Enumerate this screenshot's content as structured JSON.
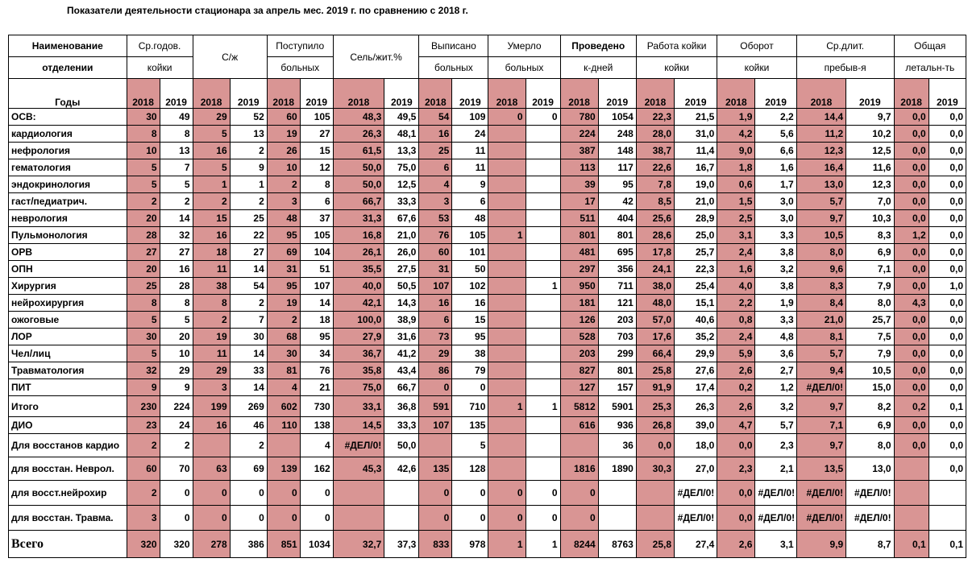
{
  "title": "Показатели деятельности стационара за апрель мес.  2019 г. по сравнению с 2018 г.",
  "header": {
    "row1": [
      "Наименование",
      "Ср.годов.",
      "С/ж",
      "Поступило",
      "Сель/жит.%",
      "Выписано",
      "Умерло",
      "Проведено",
      "Работа койки",
      "Оборот",
      "Ср.длит.",
      "Общая"
    ],
    "row2": [
      "отделении",
      "койки",
      "",
      "больных",
      "",
      "больных",
      "больных",
      "к-дней",
      "койки",
      "койки",
      "пребыв-я",
      "летальн-ть"
    ],
    "years_label": "Годы",
    "y2018": "2018",
    "y2019": "2019"
  },
  "rows": [
    {
      "name": "ОСВ:",
      "v": [
        "30",
        "49",
        "29",
        "52",
        "60",
        "105",
        "48,3",
        "49,5",
        "54",
        "109",
        "0",
        "0",
        "780",
        "1054",
        "22,3",
        "21,5",
        "1,9",
        "2,2",
        "14,4",
        "9,7",
        "0,0",
        "0,0"
      ]
    },
    {
      "name": "кардиология",
      "v": [
        "8",
        "8",
        "5",
        "13",
        "19",
        "27",
        "26,3",
        "48,1",
        "16",
        "24",
        "",
        "",
        "224",
        "248",
        "28,0",
        "31,0",
        "4,2",
        "5,6",
        "11,2",
        "10,2",
        "0,0",
        "0,0"
      ]
    },
    {
      "name": "нефрология",
      "v": [
        "10",
        "13",
        "16",
        "2",
        "26",
        "15",
        "61,5",
        "13,3",
        "25",
        "11",
        "",
        "",
        "387",
        "148",
        "38,7",
        "11,4",
        "9,0",
        "6,6",
        "12,3",
        "12,5",
        "0,0",
        "0,0"
      ]
    },
    {
      "name": "гематология",
      "v": [
        "5",
        "7",
        "5",
        "9",
        "10",
        "12",
        "50,0",
        "75,0",
        "6",
        "11",
        "",
        "",
        "113",
        "117",
        "22,6",
        "16,7",
        "1,8",
        "1,6",
        "16,4",
        "11,6",
        "0,0",
        "0,0"
      ]
    },
    {
      "name": "эндокринология",
      "v": [
        "5",
        "5",
        "1",
        "1",
        "2",
        "8",
        "50,0",
        "12,5",
        "4",
        "9",
        "",
        "",
        "39",
        "95",
        "7,8",
        "19,0",
        "0,6",
        "1,7",
        "13,0",
        "12,3",
        "0,0",
        "0,0"
      ]
    },
    {
      "name": "гаст/педиатрич.",
      "v": [
        "2",
        "2",
        "2",
        "2",
        "3",
        "6",
        "66,7",
        "33,3",
        "3",
        "6",
        "",
        "",
        "17",
        "42",
        "8,5",
        "21,0",
        "1,5",
        "3,0",
        "5,7",
        "7,0",
        "0,0",
        "0,0"
      ]
    },
    {
      "name": "неврология",
      "v": [
        "20",
        "14",
        "15",
        "25",
        "48",
        "37",
        "31,3",
        "67,6",
        "53",
        "48",
        "",
        "",
        "511",
        "404",
        "25,6",
        "28,9",
        "2,5",
        "3,0",
        "9,7",
        "10,3",
        "0,0",
        "0,0"
      ]
    },
    {
      "name": "Пульмонология",
      "v": [
        "28",
        "32",
        "16",
        "22",
        "95",
        "105",
        "16,8",
        "21,0",
        "76",
        "105",
        "1",
        "",
        "801",
        "801",
        "28,6",
        "25,0",
        "3,1",
        "3,3",
        "10,5",
        "8,3",
        "1,2",
        "0,0"
      ]
    },
    {
      "name": "ОРВ",
      "v": [
        "27",
        "27",
        "18",
        "27",
        "69",
        "104",
        "26,1",
        "26,0",
        "60",
        "101",
        "",
        "",
        "481",
        "695",
        "17,8",
        "25,7",
        "2,4",
        "3,8",
        "8,0",
        "6,9",
        "0,0",
        "0,0"
      ]
    },
    {
      "name": "ОПН",
      "v": [
        "20",
        "16",
        "11",
        "14",
        "31",
        "51",
        "35,5",
        "27,5",
        "31",
        "50",
        "",
        "",
        "297",
        "356",
        "24,1",
        "22,3",
        "1,6",
        "3,2",
        "9,6",
        "7,1",
        "0,0",
        "0,0"
      ]
    },
    {
      "name": "Хирургия",
      "v": [
        "25",
        "28",
        "38",
        "54",
        "95",
        "107",
        "40,0",
        "50,5",
        "107",
        "102",
        "",
        "1",
        "950",
        "711",
        "38,0",
        "25,4",
        "4,0",
        "3,8",
        "8,3",
        "7,9",
        "0,0",
        "1,0"
      ]
    },
    {
      "name": "нейрохирургия",
      "v": [
        "8",
        "8",
        "8",
        "2",
        "19",
        "14",
        "42,1",
        "14,3",
        "16",
        "16",
        "",
        "",
        "181",
        "121",
        "48,0",
        "15,1",
        "2,2",
        "1,9",
        "8,4",
        "8,0",
        "4,3",
        "0,0"
      ]
    },
    {
      "name": "ожоговые",
      "v": [
        "5",
        "5",
        "2",
        "7",
        "2",
        "18",
        "100,0",
        "38,9",
        "6",
        "15",
        "",
        "",
        "126",
        "203",
        "57,0",
        "40,6",
        "0,8",
        "3,3",
        "21,0",
        "25,7",
        "0,0",
        "0,0"
      ]
    },
    {
      "name": "ЛОР",
      "v": [
        "30",
        "20",
        "19",
        "30",
        "68",
        "95",
        "27,9",
        "31,6",
        "73",
        "95",
        "",
        "",
        "528",
        "703",
        "17,6",
        "35,2",
        "2,4",
        "4,8",
        "8,1",
        "7,5",
        "0,0",
        "0,0"
      ]
    },
    {
      "name": "Чел/лиц",
      "v": [
        "5",
        "10",
        "11",
        "14",
        "30",
        "34",
        "36,7",
        "41,2",
        "29",
        "38",
        "",
        "",
        "203",
        "299",
        "66,4",
        "29,9",
        "5,9",
        "3,6",
        "5,7",
        "7,9",
        "0,0",
        "0,0"
      ]
    },
    {
      "name": "Травматология",
      "v": [
        "32",
        "29",
        "29",
        "33",
        "81",
        "76",
        "35,8",
        "43,4",
        "86",
        "79",
        "",
        "",
        "827",
        "801",
        "25,8",
        "27,6",
        "2,6",
        "2,7",
        "9,4",
        "10,5",
        "0,0",
        "0,0"
      ]
    },
    {
      "name": "ПИТ",
      "v": [
        "9",
        "9",
        "3",
        "14",
        "4",
        "21",
        "75,0",
        "66,7",
        "0",
        "0",
        "",
        "",
        "127",
        "157",
        "91,9",
        "17,4",
        "0,2",
        "1,2",
        "#ДЕЛ/0!",
        "15,0",
        "0,0",
        "0,0"
      ]
    },
    {
      "name": "Итого",
      "v": [
        "230",
        "224",
        "199",
        "269",
        "602",
        "730",
        "33,1",
        "36,8",
        "591",
        "710",
        "1",
        "1",
        "5812",
        "5901",
        "25,3",
        "26,3",
        "2,6",
        "3,2",
        "9,7",
        "8,2",
        "0,2",
        "0,1"
      ]
    },
    {
      "name": "ДИО",
      "v": [
        "23",
        "24",
        "16",
        "46",
        "110",
        "138",
        "14,5",
        "33,3",
        "107",
        "135",
        "",
        "",
        "616",
        "936",
        "26,8",
        "39,0",
        "4,7",
        "5,7",
        "7,1",
        "6,9",
        "0,0",
        "0,0"
      ]
    },
    {
      "name": "Для восстанов кардио",
      "v": [
        "2",
        "2",
        "",
        "2",
        "",
        "4",
        "#ДЕЛ/0!",
        "50,0",
        "",
        "5",
        "",
        "",
        "",
        "36",
        "0,0",
        "18,0",
        "0,0",
        "2,3",
        "9,7",
        "8,0",
        "0,0",
        "0,0"
      ]
    },
    {
      "name": "для восстан. Неврол.",
      "v": [
        "60",
        "70",
        "63",
        "69",
        "139",
        "162",
        "45,3",
        "42,6",
        "135",
        "128",
        "",
        "",
        "1816",
        "1890",
        "30,3",
        "27,0",
        "2,3",
        "2,1",
        "13,5",
        "13,0",
        "",
        "0,0"
      ]
    },
    {
      "name": "для восст.нейрохир",
      "v": [
        "2",
        "0",
        "0",
        "0",
        "0",
        "0",
        "",
        "",
        "0",
        "0",
        "0",
        "0",
        "0",
        "",
        "",
        "#ДЕЛ/0!",
        "0,0",
        "#ДЕЛ/0!",
        "#ДЕЛ/0!",
        "#ДЕЛ/0!",
        "",
        ""
      ]
    },
    {
      "name": "для восстан. Травма.",
      "v": [
        "3",
        "0",
        "0",
        "0",
        "0",
        "0",
        "",
        "",
        "0",
        "0",
        "0",
        "0",
        "0",
        "",
        "",
        "#ДЕЛ/0!",
        "0,0",
        "#ДЕЛ/0!",
        "#ДЕЛ/0!",
        "#ДЕЛ/0!",
        "",
        ""
      ]
    }
  ],
  "total": {
    "name": "Всего",
    "v": [
      "320",
      "320",
      "278",
      "386",
      "851",
      "1034",
      "32,7",
      "37,3",
      "833",
      "978",
      "1",
      "1",
      "8244",
      "8763",
      "25,8",
      "27,4",
      "2,6",
      "3,1",
      "9,9",
      "8,7",
      "0,1",
      "0,1"
    ]
  },
  "colors": {
    "pink": "#d99594",
    "grid": "#000000"
  }
}
